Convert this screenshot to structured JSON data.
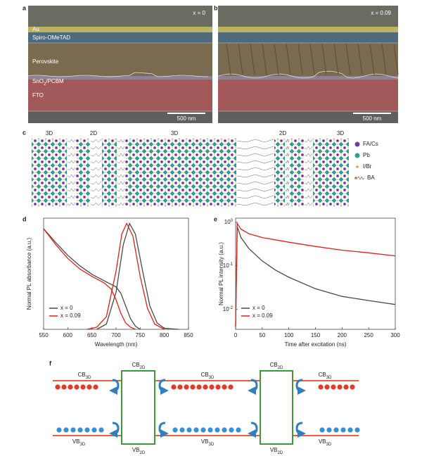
{
  "panel_labels": [
    "a",
    "b",
    "c",
    "d",
    "e",
    "f"
  ],
  "sem": [
    {
      "sample": "x = 0",
      "scale_bar": "500 nm",
      "layers": [
        {
          "text": "Au"
        },
        {
          "text": "Spiro-OMeTAD"
        },
        {
          "text": "Perovskite"
        },
        {
          "text": "SnO",
          "sub": "2",
          "rest": "/PCBM"
        },
        {
          "text": "FTO"
        }
      ]
    },
    {
      "sample": "x = 0.09",
      "scale_bar": "500 nm"
    }
  ],
  "lattice": {
    "regions": [
      "3D",
      "2D",
      "3D",
      "2D",
      "3D"
    ],
    "legend": [
      "FA/Cs",
      "Pb",
      "I/Br",
      "BA"
    ]
  },
  "chart_data": [
    {
      "type": "line",
      "xlabel": "Wavelength (nm)",
      "ylabel": "Normal PL absorbance (a.u.)",
      "xlim": [
        550,
        850
      ],
      "xticks": [
        550,
        600,
        650,
        700,
        750,
        800,
        850
      ],
      "ylim": [
        0,
        1.05
      ],
      "legend": "lower left",
      "series": [
        {
          "name": "x = 0",
          "color": "#4a4a44",
          "curves": [
            {
              "x": [
                550,
                575,
                600,
                625,
                650,
                675,
                700,
                710,
                720,
                730,
                740,
                750
              ],
              "values": [
                0.95,
                0.82,
                0.7,
                0.6,
                0.52,
                0.46,
                0.4,
                0.34,
                0.22,
                0.1,
                0.03,
                0
              ]
            },
            {
              "x": [
                660,
                680,
                700,
                715,
                728,
                740,
                755,
                770,
                785,
                800,
                830
              ],
              "values": [
                0,
                0.05,
                0.35,
                0.8,
                1,
                0.9,
                0.55,
                0.22,
                0.06,
                0.01,
                0
              ]
            }
          ]
        },
        {
          "name": "x = 0.09",
          "color": "#e0201c",
          "curves": [
            {
              "x": [
                550,
                575,
                600,
                625,
                650,
                675,
                690,
                700,
                710,
                720,
                730,
                740
              ],
              "values": [
                0.95,
                0.8,
                0.67,
                0.57,
                0.5,
                0.44,
                0.38,
                0.28,
                0.15,
                0.06,
                0.02,
                0
              ]
            },
            {
              "x": [
                640,
                660,
                680,
                700,
                712,
                722,
                735,
                750,
                765,
                780,
                800
              ],
              "values": [
                0,
                0.02,
                0.12,
                0.55,
                0.9,
                1,
                0.88,
                0.5,
                0.2,
                0.05,
                0
              ]
            }
          ]
        }
      ]
    },
    {
      "type": "line",
      "log_y": true,
      "xlabel": "Time after excitation (ns)",
      "ylabel": "Normal PL intensity (a.u.)",
      "xlim": [
        0,
        300
      ],
      "xticks": [
        0,
        50,
        100,
        150,
        200,
        250,
        300
      ],
      "ylim": [
        0.0035,
        1.25
      ],
      "yticks": [
        {
          "value": 1,
          "label": "10",
          "sup": "0"
        },
        {
          "value": 0.1,
          "label": "10",
          "sup": "-1"
        },
        {
          "value": 0.01,
          "label": "10",
          "sup": "-2"
        }
      ],
      "legend": "lower left",
      "series": [
        {
          "name": "x = 0",
          "color": "#4a4a44",
          "x": [
            0,
            3,
            10,
            25,
            50,
            75,
            100,
            150,
            200,
            250,
            300
          ],
          "values": [
            0.004,
            0.8,
            0.45,
            0.25,
            0.13,
            0.08,
            0.055,
            0.03,
            0.02,
            0.016,
            0.013
          ]
        },
        {
          "name": "x = 0.09",
          "color": "#e0201c",
          "x": [
            0,
            3,
            10,
            25,
            50,
            100,
            150,
            200,
            250,
            300
          ],
          "values": [
            0.004,
            0.95,
            0.7,
            0.55,
            0.45,
            0.35,
            0.28,
            0.23,
            0.2,
            0.17
          ]
        }
      ]
    }
  ],
  "band": {
    "labels": [
      {
        "band": "CB",
        "sub": "3D"
      },
      {
        "band": "CB",
        "sub": "2D"
      },
      {
        "band": "CB",
        "sub": "3D"
      },
      {
        "band": "CB",
        "sub": "2D"
      },
      {
        "band": "CB",
        "sub": "3D"
      },
      {
        "band": "VB",
        "sub": "3D"
      },
      {
        "band": "VB",
        "sub": "2D"
      },
      {
        "band": "VB",
        "sub": "3D"
      },
      {
        "band": "VB",
        "sub": "2D"
      },
      {
        "band": "VB",
        "sub": "3D"
      }
    ]
  }
}
